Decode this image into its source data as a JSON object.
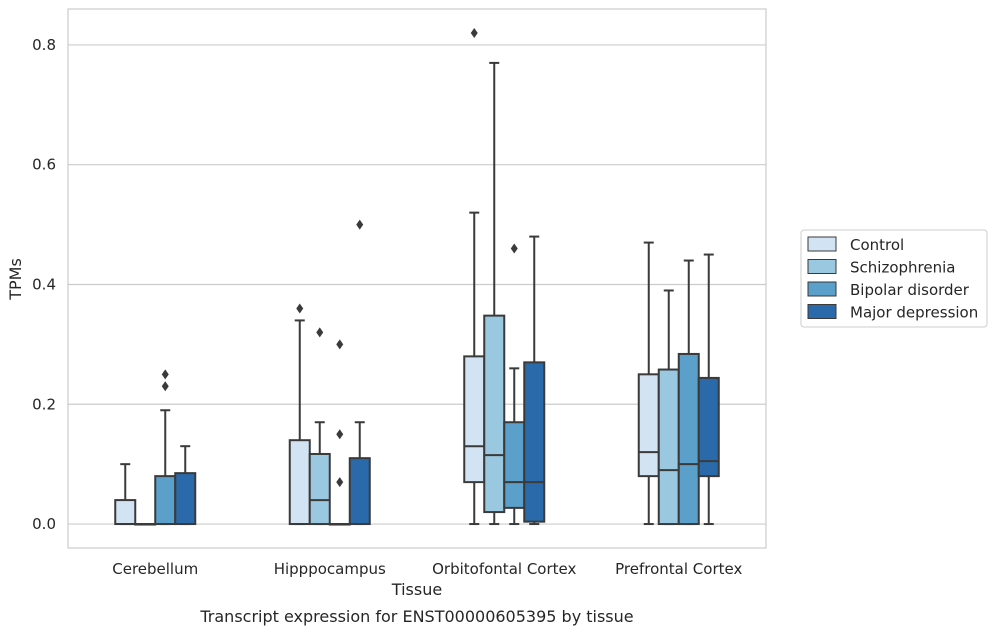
{
  "chart_data": {
    "type": "box",
    "xlabel": "Tissue",
    "ylabel": "TPMs",
    "caption": "Transcript expression for ENST00000605395 by tissue",
    "ylim": [
      -0.04,
      0.86
    ],
    "yticks": [
      0.0,
      0.2,
      0.4,
      0.6,
      0.8
    ],
    "ytick_labels": [
      "0.0",
      "0.2",
      "0.4",
      "0.6",
      "0.8"
    ],
    "grid": "horizontal",
    "legend_position": "right",
    "categories": [
      "Cerebellum",
      "Hipppocampus",
      "Orbitofontal Cortex",
      "Prefrontal Cortex"
    ],
    "series": [
      {
        "name": "Control",
        "color": "#d2e3f3",
        "boxes": [
          {
            "whisker_low": 0.0,
            "q1": 0.0,
            "median": 0.0,
            "q3": 0.04,
            "whisker_high": 0.1,
            "outliers": []
          },
          {
            "whisker_low": 0.0,
            "q1": 0.0,
            "median": 0.0,
            "q3": 0.14,
            "whisker_high": 0.34,
            "outliers": [
              0.36
            ]
          },
          {
            "whisker_low": 0.0,
            "q1": 0.07,
            "median": 0.13,
            "q3": 0.28,
            "whisker_high": 0.52,
            "outliers": [
              0.82
            ]
          },
          {
            "whisker_low": 0.0,
            "q1": 0.08,
            "median": 0.12,
            "q3": 0.25,
            "whisker_high": 0.47,
            "outliers": []
          }
        ]
      },
      {
        "name": "Schizophrenia",
        "color": "#9ac8e0",
        "boxes": [
          {
            "whisker_low": 0.0,
            "q1": 0.0,
            "median": 0.0,
            "q3": 0.0,
            "whisker_high": 0.0,
            "outliers": []
          },
          {
            "whisker_low": 0.0,
            "q1": 0.0,
            "median": 0.04,
            "q3": 0.117,
            "whisker_high": 0.17,
            "outliers": [
              0.32
            ]
          },
          {
            "whisker_low": 0.0,
            "q1": 0.02,
            "median": 0.115,
            "q3": 0.348,
            "whisker_high": 0.77,
            "outliers": []
          },
          {
            "whisker_low": 0.0,
            "q1": 0.0,
            "median": 0.09,
            "q3": 0.258,
            "whisker_high": 0.39,
            "outliers": []
          }
        ]
      },
      {
        "name": "Bipolar disorder",
        "color": "#5b9fcb",
        "boxes": [
          {
            "whisker_low": 0.0,
            "q1": 0.0,
            "median": 0.0,
            "q3": 0.08,
            "whisker_high": 0.19,
            "outliers": [
              0.23,
              0.25
            ]
          },
          {
            "whisker_low": 0.0,
            "q1": 0.0,
            "median": 0.0,
            "q3": 0.0,
            "whisker_high": 0.0,
            "outliers": [
              0.07,
              0.15,
              0.3
            ]
          },
          {
            "whisker_low": 0.0,
            "q1": 0.027,
            "median": 0.07,
            "q3": 0.17,
            "whisker_high": 0.26,
            "outliers": [
              0.46
            ]
          },
          {
            "whisker_low": 0.0,
            "q1": 0.0,
            "median": 0.1,
            "q3": 0.284,
            "whisker_high": 0.44,
            "outliers": []
          }
        ]
      },
      {
        "name": "Major depression",
        "color": "#2a6aaa",
        "boxes": [
          {
            "whisker_low": 0.0,
            "q1": 0.0,
            "median": 0.0,
            "q3": 0.085,
            "whisker_high": 0.13,
            "outliers": []
          },
          {
            "whisker_low": 0.0,
            "q1": 0.0,
            "median": 0.0,
            "q3": 0.11,
            "whisker_high": 0.17,
            "outliers": [
              0.5
            ]
          },
          {
            "whisker_low": 0.0,
            "q1": 0.004,
            "median": 0.07,
            "q3": 0.27,
            "whisker_high": 0.48,
            "outliers": []
          },
          {
            "whisker_low": 0.0,
            "q1": 0.08,
            "median": 0.105,
            "q3": 0.244,
            "whisker_high": 0.45,
            "outliers": []
          }
        ]
      }
    ],
    "colors": {
      "edge": "#3a3a3a",
      "grid": "#cccccc",
      "frame": "#cccccc"
    }
  }
}
